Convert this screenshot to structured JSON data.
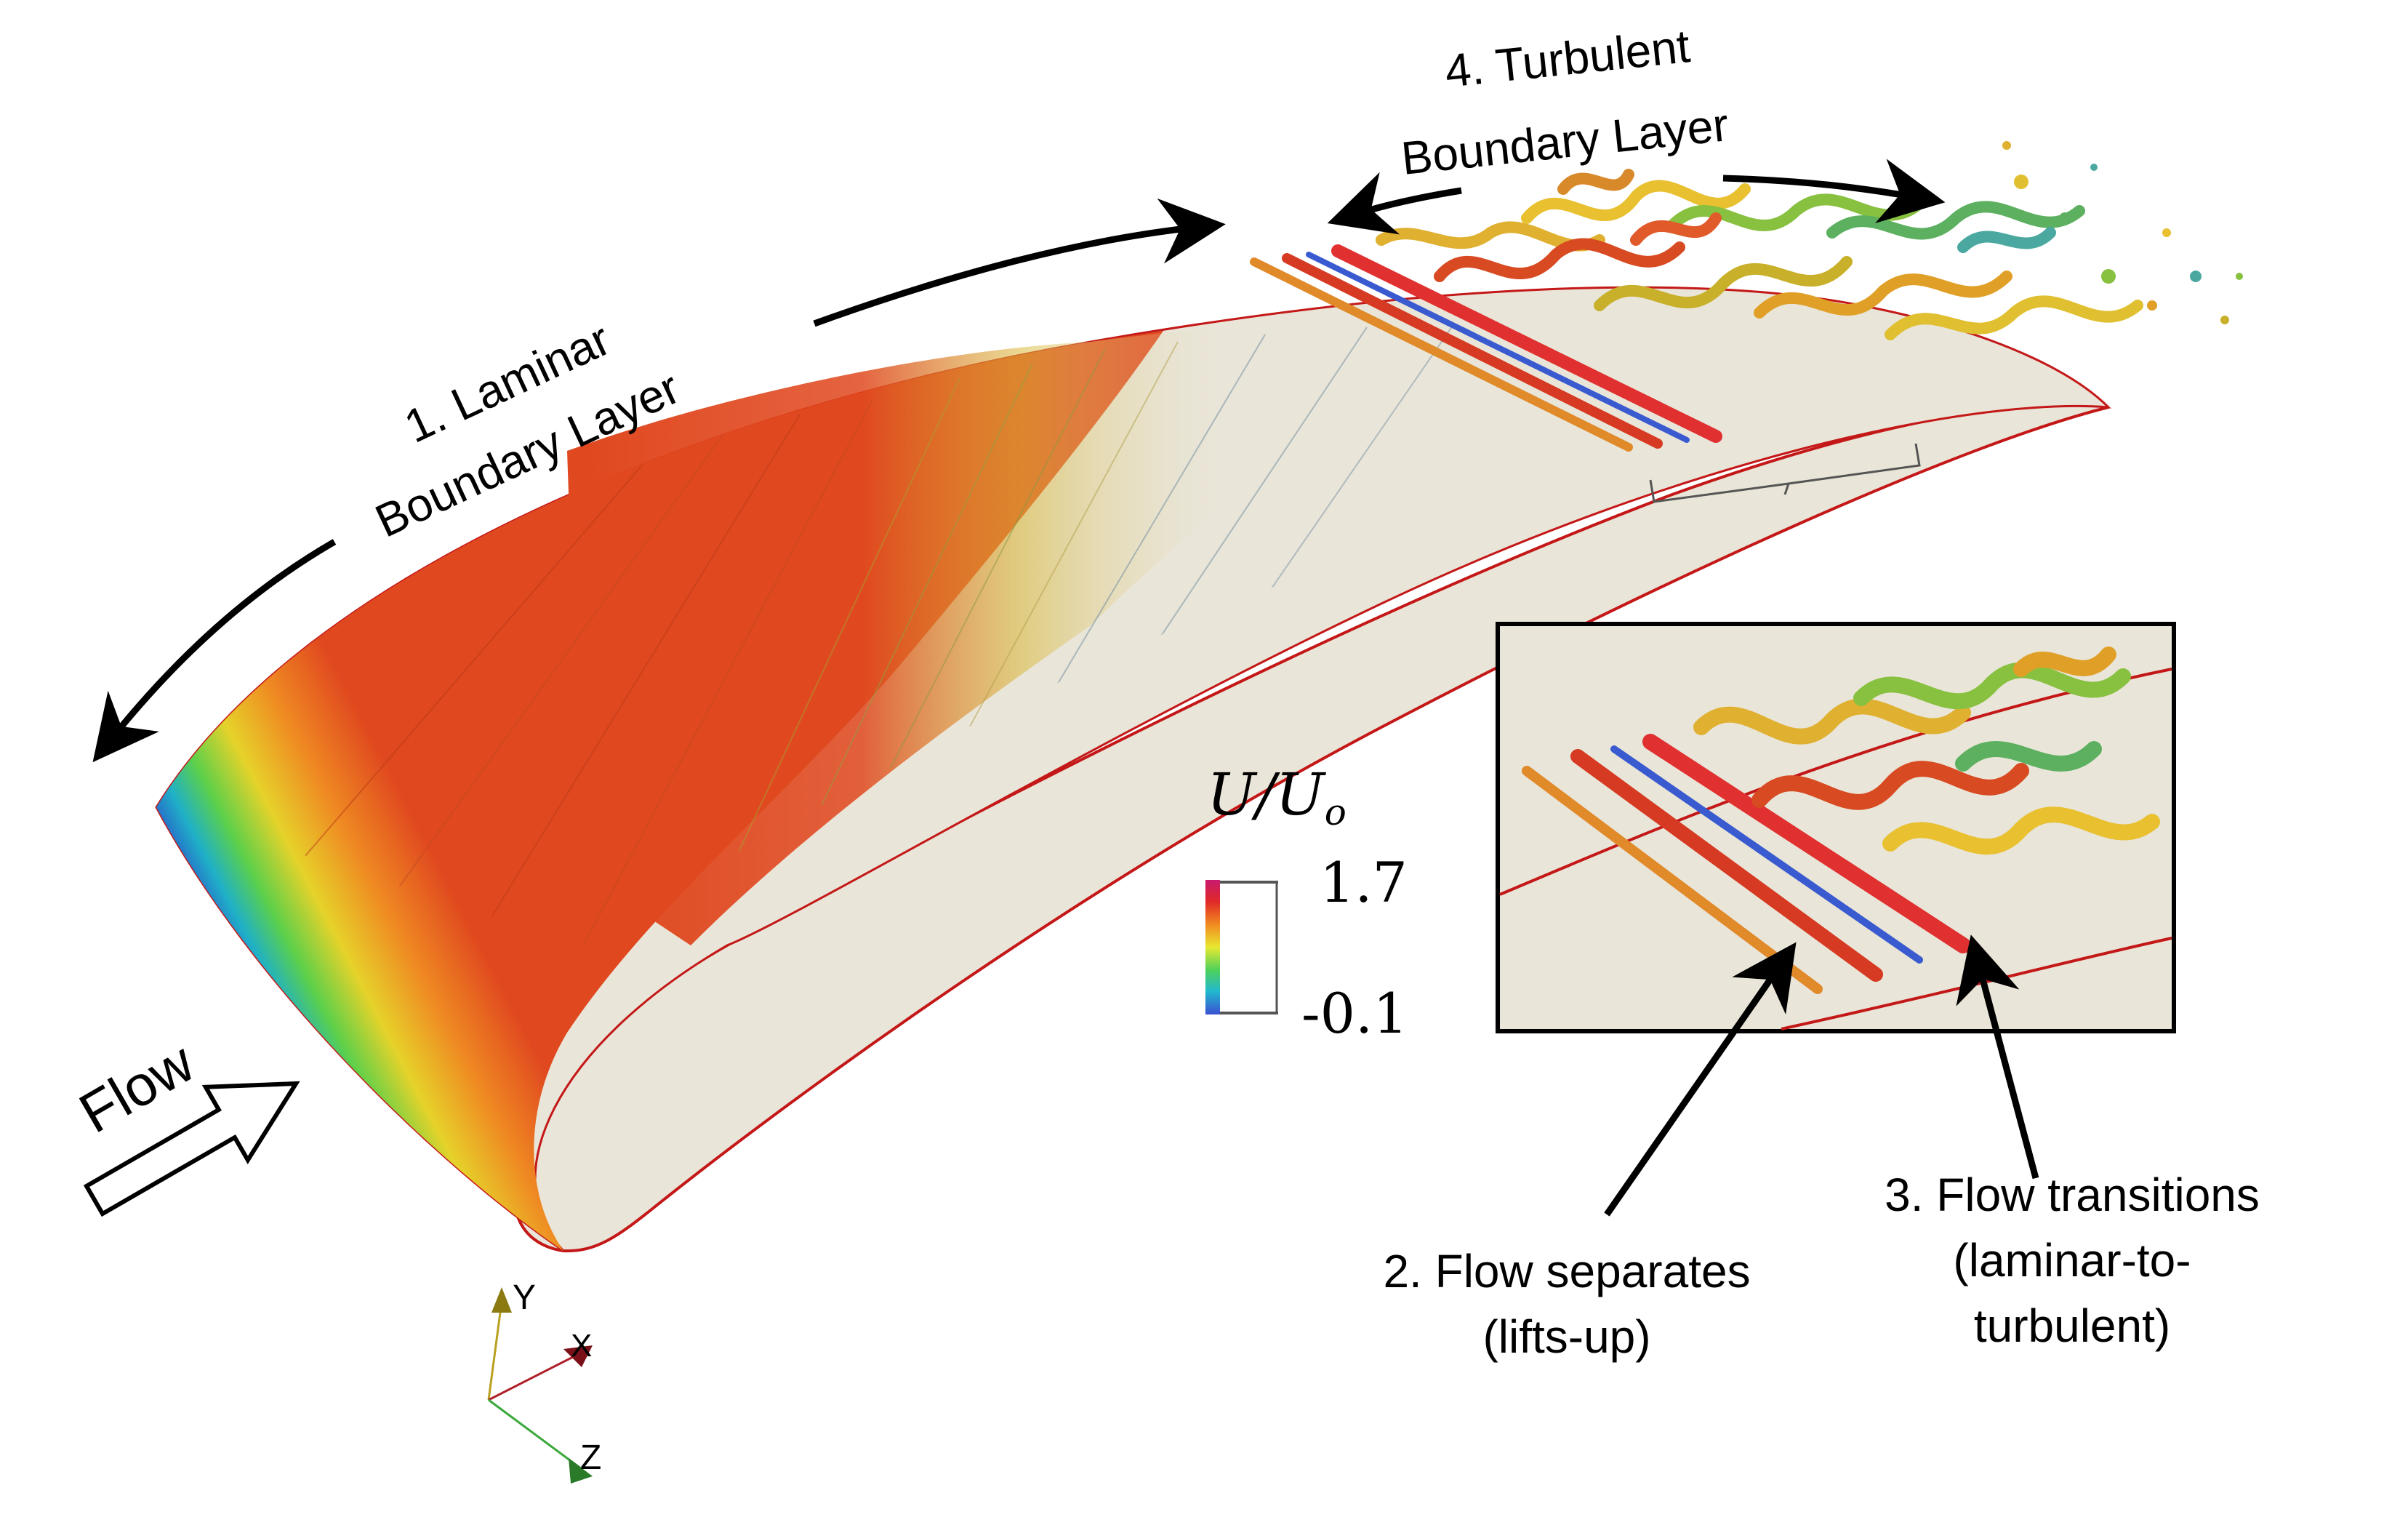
{
  "labels": {
    "laminar_line1": "1. Laminar",
    "laminar_line2": "Boundary Layer",
    "turbulent_line1": "4. Turbulent",
    "turbulent_line2": "Boundary Layer",
    "separates_line1": "2. Flow separates",
    "separates_line2": "(lifts-up)",
    "transitions_line1": "3. Flow transitions",
    "transitions_line2": "(laminar-to-",
    "transitions_line3": "turbulent)",
    "flow": "Flow"
  },
  "colorbar": {
    "title_main": "U/U",
    "title_sub": "o",
    "max_label": "1.7",
    "min_label": "-0.1",
    "stops": [
      "#3a4fd0",
      "#22b8d0",
      "#4ed25a",
      "#e8e830",
      "#f08a20",
      "#e02828",
      "#c81a6e"
    ]
  },
  "axes": {
    "x": "X",
    "y": "Y",
    "z": "Z",
    "x_color": "#b0202a",
    "y_color": "#b8a020",
    "z_color": "#3ca83c"
  },
  "colors": {
    "surface": "#e9e5d8",
    "edge": "#c41818",
    "laminar_red": "#e0481f",
    "arrow": "#000000"
  }
}
